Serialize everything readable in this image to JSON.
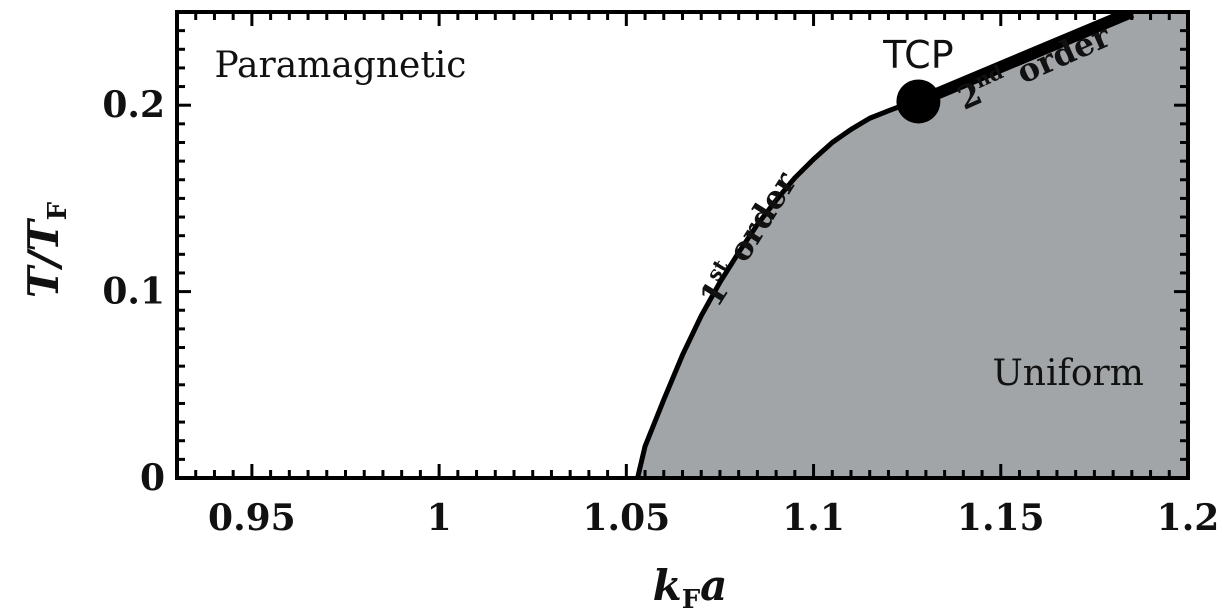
{
  "chart_data": {
    "type": "line",
    "title": "",
    "xlabel": {
      "main": "k",
      "sub": "F",
      "tail": "a"
    },
    "ylabel": {
      "main": "T/T",
      "sub": "F"
    },
    "xlim": [
      0.93,
      1.2
    ],
    "ylim": [
      0,
      0.25
    ],
    "xticks": [
      {
        "value": 0.95,
        "label": "0.95"
      },
      {
        "value": 1.0,
        "label": "1"
      },
      {
        "value": 1.05,
        "label": "1.05"
      },
      {
        "value": 1.1,
        "label": "1.1"
      },
      {
        "value": 1.15,
        "label": "1.15"
      },
      {
        "value": 1.2,
        "label": "1.2"
      }
    ],
    "yticks": [
      {
        "value": 0,
        "label": "0"
      },
      {
        "value": 0.1,
        "label": "0.1"
      },
      {
        "value": 0.2,
        "label": "0.2"
      }
    ],
    "grid": false,
    "series": [
      {
        "kind": "first-order",
        "x": [
          1.053,
          1.055,
          1.06,
          1.065,
          1.07,
          1.075,
          1.08,
          1.085,
          1.09,
          1.095,
          1.1,
          1.105,
          1.11,
          1.115,
          1.12,
          1.124,
          1.128
        ],
        "y": [
          0.0,
          0.017,
          0.042,
          0.066,
          0.087,
          0.105,
          0.121,
          0.136,
          0.149,
          0.161,
          0.171,
          0.18,
          0.187,
          0.193,
          0.197,
          0.2,
          0.202
        ]
      },
      {
        "kind": "second-order",
        "x": [
          1.128,
          1.185
        ],
        "y": [
          0.202,
          0.25
        ]
      }
    ],
    "regions": [
      {
        "label": "Paramagnetic",
        "color": "#ffffff",
        "at": [
          0.94,
          0.215
        ]
      },
      {
        "label": "Uniform",
        "color": "#a2a5a8",
        "at": [
          1.168,
          0.05
        ]
      }
    ],
    "annotations": [
      {
        "id": "first-order",
        "text": "1",
        "sup": "st",
        "tail": "order",
        "at": [
          1.085,
          0.125
        ],
        "angle": -58
      },
      {
        "id": "second-order",
        "text": "2",
        "sup": "nd",
        "tail": "order",
        "at": [
          1.16,
          0.215
        ],
        "angle": -24
      },
      {
        "id": "tcp",
        "text": "TCP",
        "at": [
          1.128,
          0.22
        ]
      }
    ],
    "tcp_point": {
      "x": 1.128,
      "y": 0.202
    },
    "colors": {
      "uniform_fill": "#a2a5a8",
      "line": "#000000",
      "background": "#ffffff"
    }
  }
}
